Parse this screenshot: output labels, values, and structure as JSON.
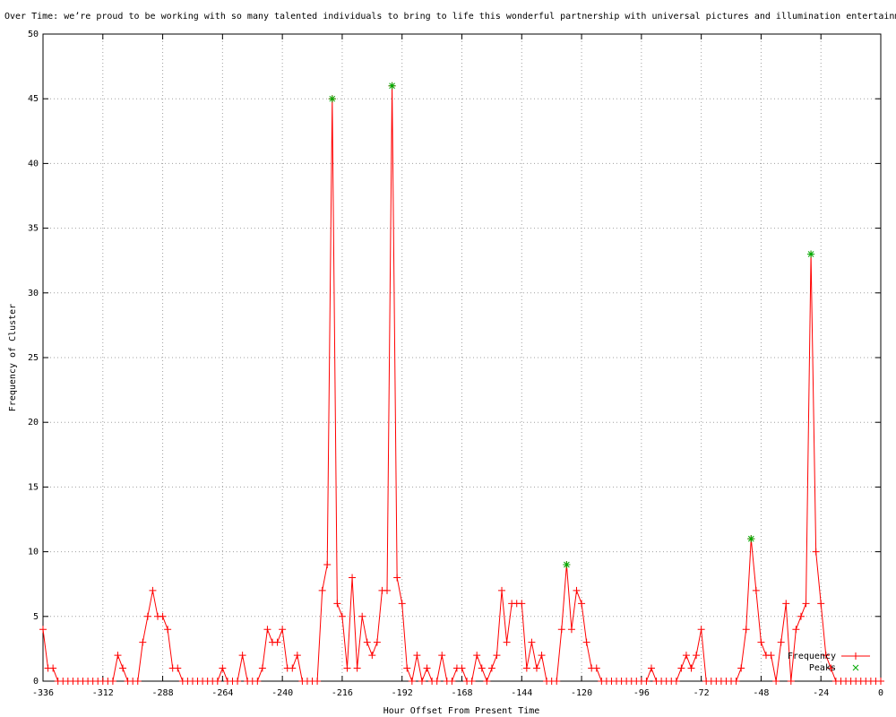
{
  "chart_data": {
    "type": "line",
    "title": "Over Time: we’re proud to be working with so many talented individuals to bring to life this wonderful partnership with universal pictures and illumination entertainm",
    "x_label": "Hour Offset From Present Time",
    "y_label": "Frequency of Cluster",
    "legend_position": "bottom right",
    "grid": true,
    "xlim": [
      -336,
      0
    ],
    "ylim": [
      0,
      50
    ],
    "xticks": [
      -336,
      -312,
      -288,
      -264,
      -240,
      -216,
      -192,
      -168,
      -144,
      -120,
      -96,
      -72,
      -48,
      -24,
      0
    ],
    "yticks": [
      0,
      5,
      10,
      15,
      20,
      25,
      30,
      35,
      40,
      45,
      50
    ],
    "series": [
      {
        "name": "Frequency",
        "color": "#ff0000",
        "marker": "plus",
        "x": [
          -336,
          -334,
          -332,
          -330,
          -328,
          -326,
          -324,
          -322,
          -320,
          -318,
          -316,
          -314,
          -312,
          -310,
          -308,
          -306,
          -304,
          -302,
          -300,
          -298,
          -296,
          -294,
          -292,
          -290,
          -288,
          -286,
          -284,
          -282,
          -280,
          -278,
          -276,
          -274,
          -272,
          -270,
          -268,
          -266,
          -264,
          -262,
          -260,
          -258,
          -256,
          -254,
          -252,
          -250,
          -248,
          -246,
          -244,
          -242,
          -240,
          -238,
          -236,
          -234,
          -232,
          -230,
          -228,
          -226,
          -224,
          -222,
          -220,
          -218,
          -216,
          -214,
          -212,
          -210,
          -208,
          -206,
          -204,
          -202,
          -200,
          -198,
          -196,
          -194,
          -192,
          -190,
          -188,
          -186,
          -184,
          -182,
          -180,
          -178,
          -176,
          -174,
          -172,
          -170,
          -168,
          -166,
          -164,
          -162,
          -160,
          -158,
          -156,
          -154,
          -152,
          -150,
          -148,
          -146,
          -144,
          -142,
          -140,
          -138,
          -136,
          -134,
          -132,
          -130,
          -128,
          -126,
          -124,
          -122,
          -120,
          -118,
          -116,
          -114,
          -112,
          -110,
          -108,
          -106,
          -104,
          -102,
          -100,
          -98,
          -96,
          -94,
          -92,
          -90,
          -88,
          -86,
          -84,
          -82,
          -80,
          -78,
          -76,
          -74,
          -72,
          -70,
          -68,
          -66,
          -64,
          -62,
          -60,
          -58,
          -56,
          -54,
          -52,
          -50,
          -48,
          -46,
          -44,
          -42,
          -40,
          -38,
          -36,
          -34,
          -32,
          -30,
          -28,
          -26,
          -24,
          -22,
          -20,
          -18,
          -16,
          -14,
          -12,
          -10,
          -8,
          -6,
          -4,
          -2,
          0
        ],
        "values": [
          4,
          1,
          1,
          0,
          0,
          0,
          0,
          0,
          0,
          0,
          0,
          0,
          0,
          0,
          0,
          2,
          1,
          0,
          0,
          0,
          3,
          5,
          7,
          5,
          5,
          4,
          1,
          1,
          0,
          0,
          0,
          0,
          0,
          0,
          0,
          0,
          1,
          0,
          0,
          0,
          2,
          0,
          0,
          0,
          1,
          4,
          3,
          3,
          4,
          1,
          1,
          2,
          0,
          0,
          0,
          0,
          7,
          9,
          45,
          6,
          5,
          1,
          8,
          1,
          5,
          3,
          2,
          3,
          7,
          7,
          46,
          8,
          6,
          1,
          0,
          2,
          0,
          1,
          0,
          0,
          2,
          0,
          0,
          1,
          1,
          0,
          0,
          2,
          1,
          0,
          1,
          2,
          7,
          3,
          6,
          6,
          6,
          1,
          3,
          1,
          2,
          0,
          0,
          0,
          4,
          9,
          4,
          7,
          6,
          3,
          1,
          1,
          0,
          0,
          0,
          0,
          0,
          0,
          0,
          0,
          0,
          0,
          1,
          0,
          0,
          0,
          0,
          0,
          1,
          2,
          1,
          2,
          4,
          0,
          0,
          0,
          0,
          0,
          0,
          0,
          1,
          4,
          11,
          7,
          3,
          2,
          2,
          0,
          3,
          6,
          0,
          4,
          5,
          6,
          33,
          10,
          6,
          2,
          1,
          0,
          0,
          0,
          0,
          0,
          0,
          0,
          0,
          0,
          0
        ]
      },
      {
        "name": "Peaks",
        "color": "#00aa00",
        "marker": "star",
        "line": false,
        "x": [
          -220,
          -196,
          -126,
          -52,
          -28
        ],
        "values": [
          45,
          46,
          9,
          11,
          33
        ]
      }
    ]
  }
}
